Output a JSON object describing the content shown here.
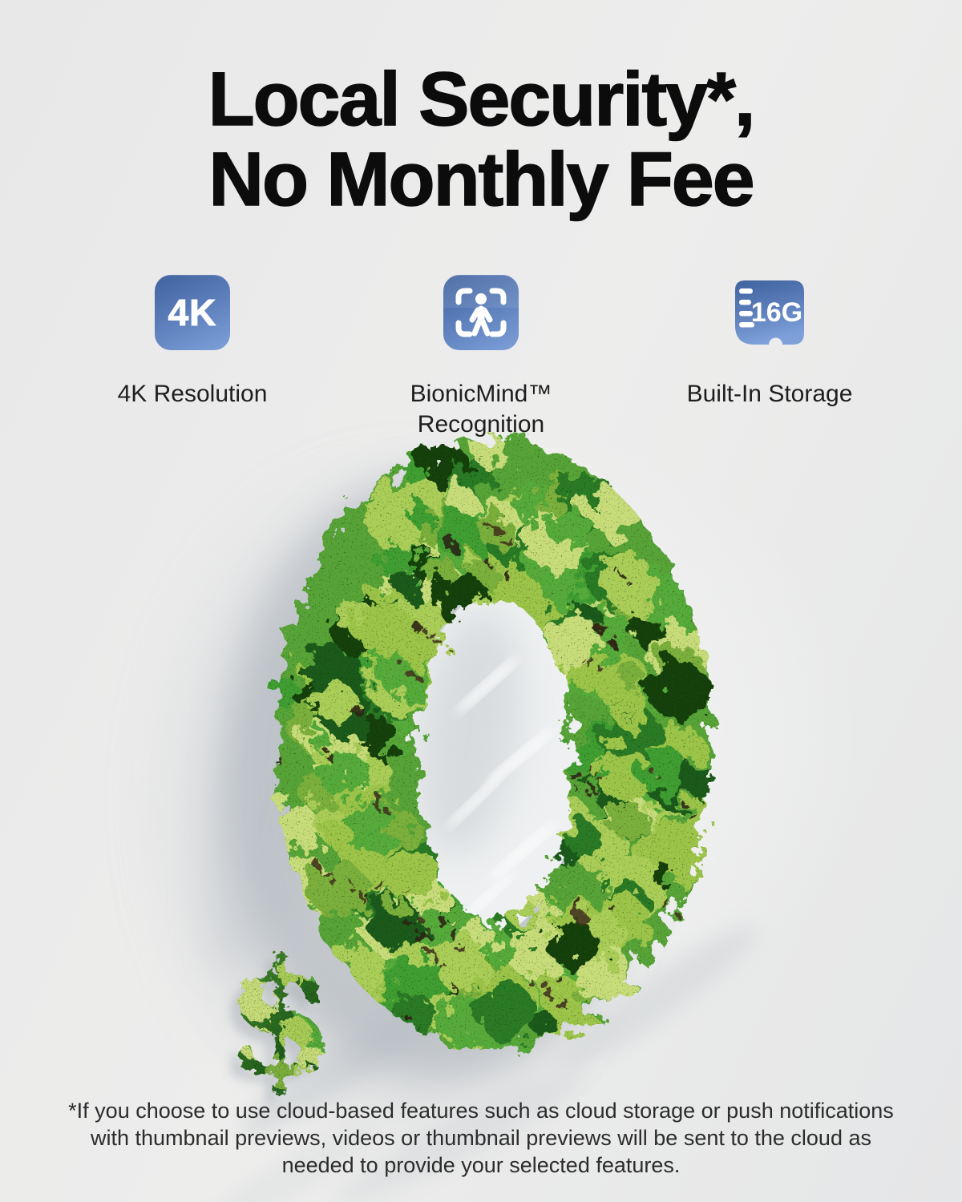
{
  "page": {
    "background_color": "#e9e9e9",
    "accent_blue_top": "#40629e",
    "accent_blue_bottom": "#7da0da"
  },
  "title": {
    "line1": "Local Security*,",
    "line2": "No Monthly Fee",
    "color": "#0c0c0c"
  },
  "features": {
    "items": [
      {
        "id": "4k-resolution",
        "icon": "4k-badge-icon",
        "icon_text": "4K",
        "label": "4K Resolution"
      },
      {
        "id": "bionicmind-recognition",
        "icon": "person-scan-icon",
        "label": "BionicMind™ Recognition"
      },
      {
        "id": "built-in-storage",
        "icon": "sd-card-icon",
        "icon_text": "16G",
        "label": "Built-In Storage"
      }
    ]
  },
  "hero": {
    "zero_symbol": "0",
    "dollar_symbol": "$",
    "description": "Large number zero made of green moss with a moss dollar sign, casting soft shadows",
    "moss_palette": [
      "#9cc548",
      "#aace58",
      "#7bb03c",
      "#56ab3a",
      "#3f9e33",
      "#2c7a26",
      "#1e5a1e",
      "#c8dd7a",
      "#17400f"
    ]
  },
  "footer": {
    "disclaimer": "*If you choose to use cloud-based features such as cloud storage or push notifications with thumbnail previews, videos or thumbnail previews will be sent to the cloud as needed to provide your selected features."
  }
}
